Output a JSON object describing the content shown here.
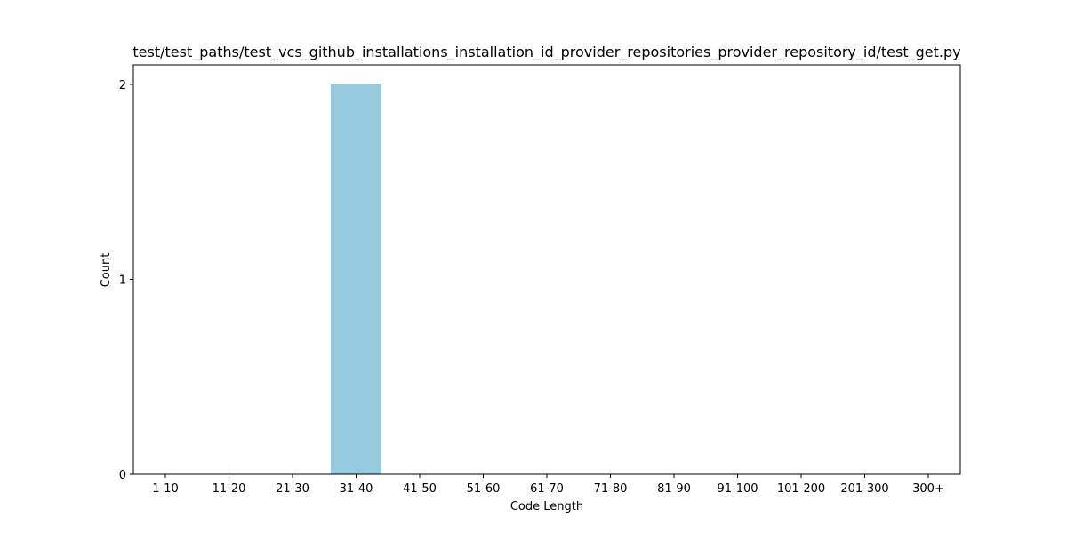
{
  "chart_data": {
    "type": "bar",
    "title": "test/test_paths/test_vcs_github_installations_installation_id_provider_repositories_provider_repository_id/test_get.py",
    "xlabel": "Code Length",
    "ylabel": "Count",
    "categories": [
      "1-10",
      "11-20",
      "21-30",
      "31-40",
      "41-50",
      "51-60",
      "61-70",
      "71-80",
      "81-90",
      "91-100",
      "101-200",
      "201-300",
      "300+"
    ],
    "values": [
      0,
      0,
      0,
      2,
      0,
      0,
      0,
      0,
      0,
      0,
      0,
      0,
      0
    ],
    "ylim": [
      0,
      2.1
    ],
    "yticks": [
      0,
      1,
      2
    ],
    "grid": false,
    "bar_color": "#95c9de"
  }
}
